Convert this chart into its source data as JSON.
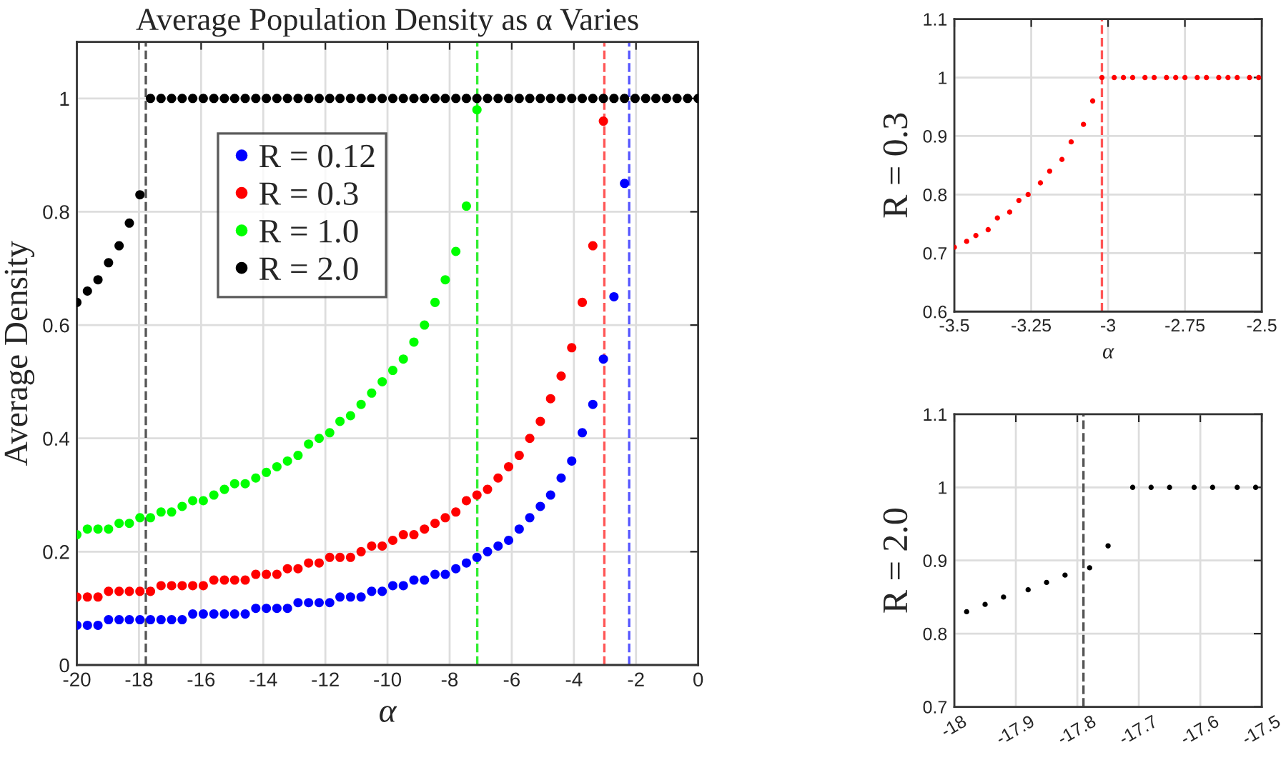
{
  "chart_data": [
    {
      "type": "scatter",
      "title": "Average Population Density as α Varies",
      "xlabel": "α",
      "ylabel": "Average Density",
      "x": [
        -20,
        -19.66,
        -19.32,
        -18.98,
        -18.64,
        -18.31,
        -17.97,
        -17.63,
        -17.29,
        -16.95,
        -16.61,
        -16.27,
        -15.93,
        -15.59,
        -15.25,
        -14.92,
        -14.58,
        -14.24,
        -13.9,
        -13.56,
        -13.22,
        -12.88,
        -12.54,
        -12.2,
        -11.86,
        -11.53,
        -11.19,
        -10.85,
        -10.51,
        -10.17,
        -9.83,
        -9.49,
        -9.15,
        -8.81,
        -8.47,
        -8.14,
        -7.8,
        -7.46,
        -7.12,
        -6.78,
        -6.44,
        -6.1,
        -5.76,
        -5.42,
        -5.08,
        -4.75,
        -4.41,
        -4.07,
        -3.73,
        -3.39,
        -3.05,
        -2.71,
        -2.37,
        -2.03,
        -1.69,
        -1.36,
        -1.02,
        -0.68,
        -0.34,
        0
      ],
      "series": [
        {
          "name": "R = 0.12",
          "color": "#0000ff",
          "values": [
            0.07,
            0.07,
            0.07,
            0.08,
            0.08,
            0.08,
            0.08,
            0.08,
            0.08,
            0.08,
            0.08,
            0.09,
            0.09,
            0.09,
            0.09,
            0.09,
            0.09,
            0.1,
            0.1,
            0.1,
            0.1,
            0.11,
            0.11,
            0.11,
            0.11,
            0.12,
            0.12,
            0.12,
            0.13,
            0.13,
            0.14,
            0.14,
            0.15,
            0.15,
            0.16,
            0.16,
            0.17,
            0.18,
            0.19,
            0.2,
            0.21,
            0.22,
            0.24,
            0.26,
            0.28,
            0.3,
            0.33,
            0.36,
            0.41,
            0.46,
            0.54,
            0.65,
            0.85,
            null,
            null,
            null,
            null,
            null,
            null,
            null
          ]
        },
        {
          "name": "R = 0.3",
          "color": "#ff0000",
          "values": [
            0.12,
            0.12,
            0.12,
            0.13,
            0.13,
            0.13,
            0.13,
            0.13,
            0.14,
            0.14,
            0.14,
            0.14,
            0.14,
            0.15,
            0.15,
            0.15,
            0.15,
            0.16,
            0.16,
            0.16,
            0.17,
            0.17,
            0.18,
            0.18,
            0.19,
            0.19,
            0.19,
            0.2,
            0.21,
            0.21,
            0.22,
            0.23,
            0.23,
            0.24,
            0.25,
            0.26,
            0.27,
            0.29,
            0.3,
            0.31,
            0.33,
            0.35,
            0.37,
            0.4,
            0.43,
            0.47,
            0.51,
            0.56,
            0.64,
            0.74,
            0.96,
            null,
            null,
            null,
            null,
            null,
            null,
            null,
            null,
            null
          ]
        },
        {
          "name": "R = 1.0",
          "color": "#00ff00",
          "values": [
            0.23,
            0.24,
            0.24,
            0.24,
            0.25,
            0.25,
            0.26,
            0.26,
            0.27,
            0.27,
            0.28,
            0.29,
            0.29,
            0.3,
            0.31,
            0.32,
            0.32,
            0.33,
            0.34,
            0.35,
            0.36,
            0.37,
            0.39,
            0.4,
            0.41,
            0.43,
            0.44,
            0.46,
            0.48,
            0.5,
            0.52,
            0.54,
            0.57,
            0.6,
            0.64,
            0.68,
            0.73,
            0.81,
            0.98,
            null,
            null,
            null,
            null,
            null,
            null,
            null,
            null,
            null,
            null,
            null,
            null,
            null,
            null,
            null,
            null,
            null,
            null,
            null,
            null,
            null
          ]
        },
        {
          "name": "R = 2.0",
          "color": "#000000",
          "values": [
            0.64,
            0.66,
            0.68,
            0.71,
            0.74,
            0.78,
            0.83,
            1,
            1,
            1,
            1,
            1,
            1,
            1,
            1,
            1,
            1,
            1,
            1,
            1,
            1,
            1,
            1,
            1,
            1,
            1,
            1,
            1,
            1,
            1,
            1,
            1,
            1,
            1,
            1,
            1,
            1,
            1,
            1,
            1,
            1,
            1,
            1,
            1,
            1,
            1,
            1,
            1,
            1,
            1,
            1,
            1,
            1,
            1,
            1,
            1,
            1,
            1,
            1,
            1
          ]
        }
      ],
      "xlim": [
        -20,
        0
      ],
      "xticks": [
        -20,
        -18,
        -16,
        -14,
        -12,
        -10,
        -8,
        -6,
        -4,
        -2,
        0
      ],
      "ylim": [
        0,
        1.1
      ],
      "yticks": [
        0,
        0.2,
        0.4,
        0.6,
        0.8,
        1
      ],
      "ref_lines": [
        {
          "axis": "x",
          "value": -17.78,
          "color": "#555555",
          "line_style": "dashed"
        },
        {
          "axis": "x",
          "value": -7.11,
          "color": "#33ee33",
          "line_style": "dashed"
        },
        {
          "axis": "x",
          "value": -3.02,
          "color": "#ff5555",
          "line_style": "dashed"
        },
        {
          "axis": "x",
          "value": -2.22,
          "color": "#5555ff",
          "line_style": "dashed"
        }
      ],
      "grid": true,
      "legend": "top left",
      "marker": "circle"
    },
    {
      "type": "scatter",
      "xlabel": "α",
      "ylabel": "R = 0.3",
      "series": [
        {
          "color": "#ff0000",
          "x": [
            -3.5,
            -3.46,
            -3.43,
            -3.39,
            -3.36,
            -3.32,
            -3.29,
            -3.26,
            -3.22,
            -3.19,
            -3.15,
            -3.12,
            -3.08,
            -3.05,
            -3.02,
            -2.98,
            -2.95,
            -2.92,
            -2.88,
            -2.85,
            -2.81,
            -2.78,
            -2.75,
            -2.71,
            -2.68,
            -2.64,
            -2.61,
            -2.58,
            -2.54,
            -2.51
          ],
          "values": [
            0.71,
            0.72,
            0.73,
            0.74,
            0.76,
            0.77,
            0.79,
            0.8,
            0.82,
            0.84,
            0.86,
            0.89,
            0.92,
            0.96,
            1,
            1,
            1,
            1,
            1,
            1,
            1,
            1,
            1,
            1,
            1,
            1,
            1,
            1,
            1,
            1
          ]
        }
      ],
      "xlim": [
        -3.5,
        -2.5
      ],
      "xticks": [
        -3.5,
        -3.25,
        -3,
        -2.75,
        -2.5
      ],
      "ylim": [
        0.6,
        1.1
      ],
      "yticks": [
        0.6,
        0.7,
        0.8,
        0.9,
        1,
        1.1
      ],
      "ref_lines": [
        {
          "axis": "x",
          "value": -3.02,
          "color": "#ff5555",
          "line_style": "dashed"
        }
      ],
      "grid": true,
      "marker": "circle"
    },
    {
      "type": "scatter",
      "ylabel": "R = 2.0",
      "series": [
        {
          "color": "#000000",
          "x": [
            -17.98,
            -17.95,
            -17.92,
            -17.88,
            -17.85,
            -17.82,
            -17.78,
            -17.75,
            -17.71,
            -17.68,
            -17.65,
            -17.61,
            -17.58,
            -17.54,
            -17.51
          ],
          "values": [
            0.83,
            0.84,
            0.85,
            0.86,
            0.87,
            0.88,
            0.89,
            0.92,
            1,
            1,
            1,
            1,
            1,
            1,
            1
          ]
        }
      ],
      "xlim": [
        -18,
        -17.5
      ],
      "xticks": [
        -18,
        -17.9,
        -17.8,
        -17.7,
        -17.6,
        -17.5
      ],
      "ylim": [
        0.7,
        1.1
      ],
      "yticks": [
        0.7,
        0.8,
        0.9,
        1,
        1.1
      ],
      "ref_lines": [
        {
          "axis": "x",
          "value": -17.79,
          "color": "#555555",
          "line_style": "dashed"
        }
      ],
      "grid": true,
      "marker": "circle"
    }
  ]
}
